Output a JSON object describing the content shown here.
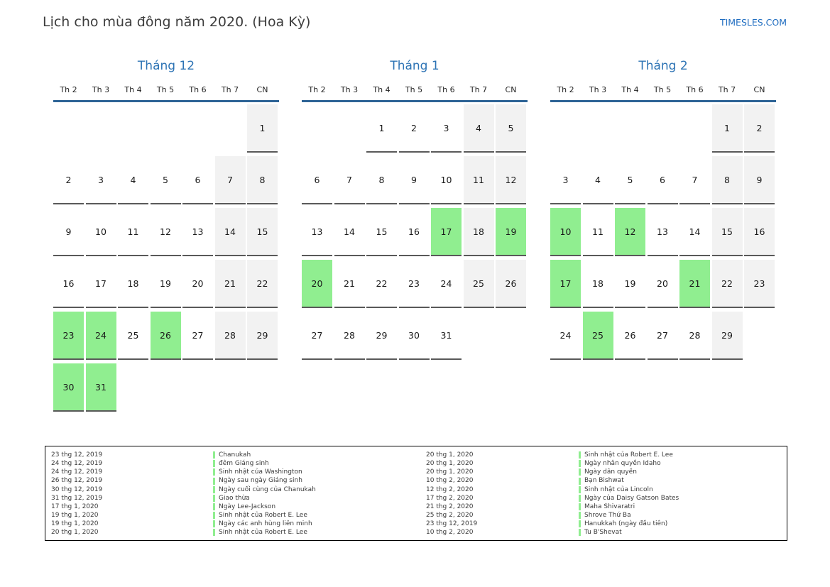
{
  "page": {
    "title": "Lịch cho mùa đông năm 2020. (Hoa Kỳ)",
    "site_link": "TIMESLES.COM"
  },
  "colors": {
    "accent_blue": "#2e74b5",
    "link_blue": "#1e6cc0",
    "header_rule_blue": "#2e6496",
    "holiday_green": "#90ee90",
    "weekend_gray": "#f2f2f2",
    "cell_border_gray": "#595959"
  },
  "day_headers": [
    "Th 2",
    "Th 3",
    "Th 4",
    "Th 5",
    "Th 6",
    "Th 7",
    "CN"
  ],
  "months": [
    {
      "title": "Tháng 12",
      "weeks": [
        [
          null,
          null,
          null,
          null,
          null,
          null,
          1
        ],
        [
          2,
          3,
          4,
          5,
          6,
          7,
          8
        ],
        [
          9,
          10,
          11,
          12,
          13,
          14,
          15
        ],
        [
          16,
          17,
          18,
          19,
          20,
          21,
          22
        ],
        [
          23,
          24,
          25,
          26,
          27,
          28,
          29
        ],
        [
          30,
          31,
          null,
          null,
          null,
          null,
          null
        ]
      ],
      "holidays": [
        23,
        24,
        26,
        30,
        31
      ]
    },
    {
      "title": "Tháng 1",
      "weeks": [
        [
          null,
          null,
          1,
          2,
          3,
          4,
          5
        ],
        [
          6,
          7,
          8,
          9,
          10,
          11,
          12
        ],
        [
          13,
          14,
          15,
          16,
          17,
          18,
          19
        ],
        [
          20,
          21,
          22,
          23,
          24,
          25,
          26
        ],
        [
          27,
          28,
          29,
          30,
          31,
          null,
          null
        ]
      ],
      "holidays": [
        17,
        19,
        20
      ]
    },
    {
      "title": "Tháng 2",
      "weeks": [
        [
          null,
          null,
          null,
          null,
          null,
          1,
          2
        ],
        [
          3,
          4,
          5,
          6,
          7,
          8,
          9
        ],
        [
          10,
          11,
          12,
          13,
          14,
          15,
          16
        ],
        [
          17,
          18,
          19,
          20,
          21,
          22,
          23
        ],
        [
          24,
          25,
          26,
          27,
          28,
          29,
          null
        ]
      ],
      "holidays": [
        10,
        12,
        17,
        21,
        25
      ]
    }
  ],
  "legend": {
    "left": [
      {
        "date": "23 thg 12, 2019",
        "name": "Chanukah"
      },
      {
        "date": "24 thg 12, 2019",
        "name": "đêm Giáng sinh"
      },
      {
        "date": "24 thg 12, 2019",
        "name": "Sinh nhật của Washington"
      },
      {
        "date": "26 thg 12, 2019",
        "name": "Ngày sau ngày Giáng sinh"
      },
      {
        "date": "30 thg 12, 2019",
        "name": "Ngày cuối cùng của Chanukah"
      },
      {
        "date": "31 thg 12, 2019",
        "name": "Giao thừa"
      },
      {
        "date": "17 thg 1, 2020",
        "name": "Ngày Lee-Jackson"
      },
      {
        "date": "19 thg 1, 2020",
        "name": "Sinh nhật của Robert E. Lee"
      },
      {
        "date": "19 thg 1, 2020",
        "name": "Ngày các anh hùng liên minh"
      },
      {
        "date": "20 thg 1, 2020",
        "name": "Sinh nhật của Robert E. Lee"
      }
    ],
    "right": [
      {
        "date": "20 thg 1, 2020",
        "name": "Sinh nhật của Robert E. Lee"
      },
      {
        "date": "20 thg 1, 2020",
        "name": "Ngày nhân quyền Idaho"
      },
      {
        "date": "20 thg 1, 2020",
        "name": "Ngày dân quyền"
      },
      {
        "date": "10 thg 2, 2020",
        "name": "Bạn Bishwat"
      },
      {
        "date": "12 thg 2, 2020",
        "name": "Sinh nhật của Lincoln"
      },
      {
        "date": "17 thg 2, 2020",
        "name": "Ngày của Daisy Gatson Bates"
      },
      {
        "date": "21 thg 2, 2020",
        "name": "Maha Shivaratri"
      },
      {
        "date": "25 thg 2, 2020",
        "name": "Shrove Thứ Ba"
      },
      {
        "date": "23 thg 12, 2019",
        "name": "Hanukkah (ngày đầu tiên)"
      },
      {
        "date": "10 thg 2, 2020",
        "name": "Tu B'Shevat"
      }
    ]
  }
}
